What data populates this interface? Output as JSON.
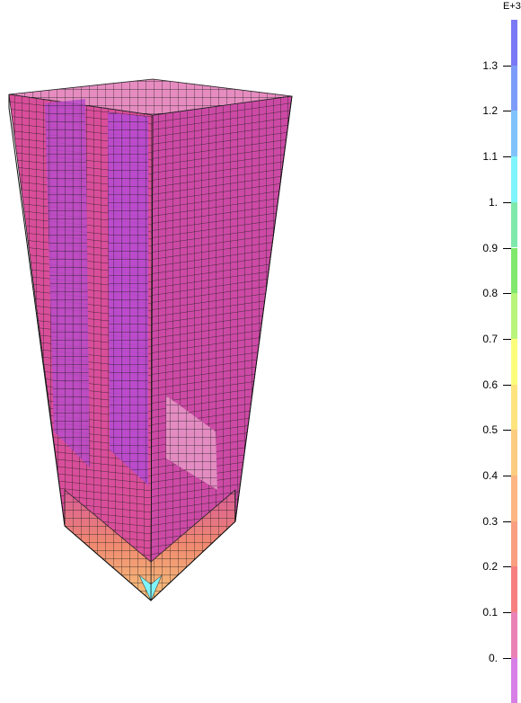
{
  "legend": {
    "exponent_label": "E+3",
    "tick_labels": [
      "1.3",
      "1.2",
      "1.1",
      "1.",
      "0.9",
      "0.8",
      "0.7",
      "0.6",
      "0.5",
      "0.4",
      "0.3",
      "0.2",
      "0.1",
      "0."
    ],
    "colors": [
      "#7a78f5",
      "#7d9cf9",
      "#80c3fb",
      "#7ff4fb",
      "#7fe9ac",
      "#80e86d",
      "#b9f47b",
      "#fdfd7c",
      "#fde47e",
      "#fccc80",
      "#fcb583",
      "#f99e80",
      "#f77f80",
      "#ea82b8",
      "#d77fe6"
    ]
  }
}
